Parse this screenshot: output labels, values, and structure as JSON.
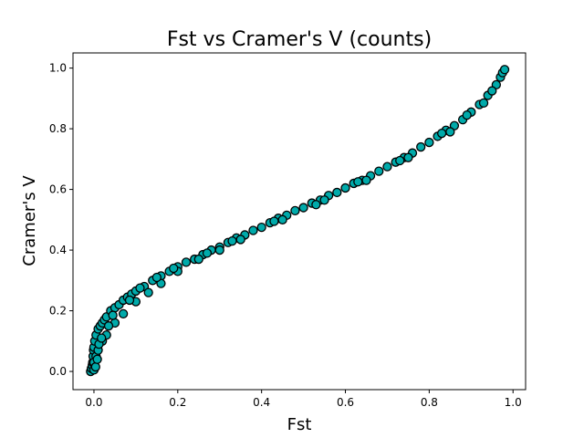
{
  "chart_data": {
    "type": "scatter",
    "title": "Fst vs Cramer's V (counts)",
    "xlabel": "Fst",
    "ylabel": "Cramer's V",
    "xlim": [
      -0.05,
      1.03
    ],
    "ylim": [
      -0.06,
      1.05
    ],
    "xticks": [
      "0.0",
      "0.2",
      "0.4",
      "0.6",
      "0.8",
      "1.0"
    ],
    "yticks": [
      "0.0",
      "0.2",
      "0.4",
      "0.6",
      "0.8",
      "1.0"
    ],
    "grid": false,
    "legend": "none",
    "marker_face_color": "#00aaaa",
    "marker_edge_color": "#000000",
    "points": [
      [
        -0.008,
        0.0
      ],
      [
        -0.006,
        0.01
      ],
      [
        -0.004,
        0.02
      ],
      [
        -0.003,
        0.03
      ],
      [
        -0.002,
        0.05
      ],
      [
        -0.001,
        0.07
      ],
      [
        0.0,
        0.08
      ],
      [
        0.002,
        0.1
      ],
      [
        0.005,
        0.12
      ],
      [
        0.01,
        0.14
      ],
      [
        0.015,
        0.15
      ],
      [
        0.02,
        0.16
      ],
      [
        0.025,
        0.17
      ],
      [
        0.03,
        0.18
      ],
      [
        0.04,
        0.2
      ],
      [
        0.05,
        0.21
      ],
      [
        0.06,
        0.22
      ],
      [
        0.07,
        0.235
      ],
      [
        0.08,
        0.245
      ],
      [
        0.09,
        0.255
      ],
      [
        0.1,
        0.265
      ],
      [
        0.12,
        0.28
      ],
      [
        0.14,
        0.3
      ],
      [
        0.16,
        0.315
      ],
      [
        0.18,
        0.33
      ],
      [
        0.2,
        0.345
      ],
      [
        0.22,
        0.36
      ],
      [
        0.24,
        0.37
      ],
      [
        0.26,
        0.385
      ],
      [
        0.28,
        0.4
      ],
      [
        0.3,
        0.41
      ],
      [
        0.32,
        0.425
      ],
      [
        0.34,
        0.44
      ],
      [
        0.36,
        0.45
      ],
      [
        0.38,
        0.465
      ],
      [
        0.4,
        0.475
      ],
      [
        0.42,
        0.49
      ],
      [
        0.44,
        0.505
      ],
      [
        0.46,
        0.515
      ],
      [
        0.48,
        0.53
      ],
      [
        0.5,
        0.54
      ],
      [
        0.52,
        0.555
      ],
      [
        0.54,
        0.565
      ],
      [
        0.56,
        0.58
      ],
      [
        0.58,
        0.59
      ],
      [
        0.6,
        0.605
      ],
      [
        0.62,
        0.62
      ],
      [
        0.64,
        0.63
      ],
      [
        0.66,
        0.645
      ],
      [
        0.68,
        0.66
      ],
      [
        0.7,
        0.675
      ],
      [
        0.72,
        0.69
      ],
      [
        0.74,
        0.705
      ],
      [
        0.76,
        0.72
      ],
      [
        0.78,
        0.74
      ],
      [
        0.8,
        0.755
      ],
      [
        0.82,
        0.775
      ],
      [
        0.84,
        0.795
      ],
      [
        0.86,
        0.81
      ],
      [
        0.88,
        0.83
      ],
      [
        0.9,
        0.855
      ],
      [
        0.92,
        0.88
      ],
      [
        0.94,
        0.91
      ],
      [
        0.96,
        0.945
      ],
      [
        0.97,
        0.97
      ],
      [
        0.975,
        0.985
      ],
      [
        0.98,
        0.995
      ],
      [
        0.0,
        0.03
      ],
      [
        0.005,
        0.05
      ],
      [
        0.01,
        0.07
      ],
      [
        0.02,
        0.1
      ],
      [
        0.03,
        0.12
      ],
      [
        0.05,
        0.16
      ],
      [
        0.07,
        0.19
      ],
      [
        0.1,
        0.23
      ],
      [
        0.13,
        0.26
      ],
      [
        0.16,
        0.29
      ],
      [
        0.2,
        0.33
      ],
      [
        0.25,
        0.37
      ],
      [
        0.3,
        0.4
      ],
      [
        0.35,
        0.435
      ],
      [
        0.45,
        0.5
      ],
      [
        0.55,
        0.565
      ],
      [
        0.65,
        0.63
      ],
      [
        0.75,
        0.705
      ],
      [
        0.85,
        0.79
      ],
      [
        0.93,
        0.885
      ],
      [
        0.0,
        0.005
      ],
      [
        0.004,
        0.015
      ],
      [
        0.008,
        0.04
      ],
      [
        0.012,
        0.09
      ],
      [
        0.018,
        0.11
      ],
      [
        0.035,
        0.15
      ],
      [
        0.045,
        0.185
      ],
      [
        0.085,
        0.235
      ],
      [
        0.11,
        0.275
      ],
      [
        0.15,
        0.31
      ],
      [
        0.19,
        0.34
      ],
      [
        0.27,
        0.39
      ],
      [
        0.33,
        0.43
      ],
      [
        0.43,
        0.495
      ],
      [
        0.53,
        0.55
      ],
      [
        0.63,
        0.625
      ],
      [
        0.73,
        0.695
      ],
      [
        0.83,
        0.785
      ],
      [
        0.89,
        0.845
      ],
      [
        0.95,
        0.925
      ]
    ]
  }
}
